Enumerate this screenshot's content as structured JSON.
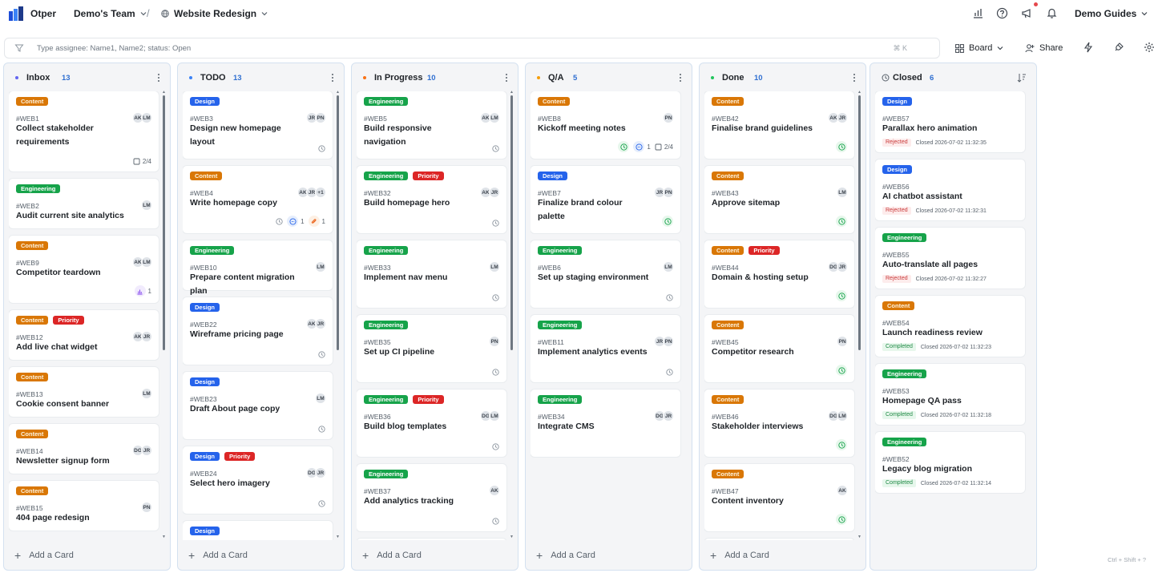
{
  "app": {
    "brand": "Otper",
    "team": "Demo's Team",
    "project": "Website Redesign",
    "guides": "Demo Guides"
  },
  "filter": {
    "placeholder": "Type assignee: Name1, Name2; status: Open",
    "shortcut": "⌘ K"
  },
  "toolbar": {
    "board_label": "Board",
    "share_label": "Share"
  },
  "footer_hint": "Ctrl + Shift + ?",
  "add_card_label": "Add a Card",
  "colors": {
    "inbox": "#6366f1",
    "todo": "#3b82f6",
    "inprogress": "#f97316",
    "qa": "#f59e0b",
    "done": "#22c55e"
  },
  "columns": [
    {
      "key": "inbox",
      "title": "Inbox",
      "count": "13",
      "cards": [
        {
          "id": "#WEB1",
          "title": "Collect stakeholder requirements",
          "tags": [
            "Content"
          ],
          "avatars": [
            "AK",
            "LM"
          ],
          "checklist": "2/4",
          "h": 100
        },
        {
          "id": "#WEB2",
          "title": "Audit current site analytics",
          "tags": [
            "Engineering"
          ],
          "avatars": [
            "LM"
          ],
          "h": 62
        },
        {
          "id": "#WEB9",
          "title": "Competitor teardown",
          "tags": [
            "Content"
          ],
          "avatars": [
            "AK",
            "LM"
          ],
          "chart": "1",
          "h": 84
        },
        {
          "id": "#WEB12",
          "title": "Add live chat widget",
          "tags": [
            "Content",
            "Priority"
          ],
          "avatars": [
            "AK",
            "JR"
          ],
          "h": 62
        },
        {
          "id": "#WEB13",
          "title": "Cookie consent banner",
          "tags": [
            "Content"
          ],
          "avatars": [
            "LM"
          ],
          "h": 62
        },
        {
          "id": "#WEB14",
          "title": "Newsletter signup form",
          "tags": [
            "Content"
          ],
          "avatars": [
            "DG",
            "JR"
          ],
          "h": 62
        },
        {
          "id": "#WEB15",
          "title": "404 page redesign",
          "tags": [
            "Content"
          ],
          "avatars": [
            "PN"
          ],
          "h": 62
        }
      ]
    },
    {
      "key": "todo",
      "title": "TODO",
      "count": "13",
      "cards": [
        {
          "id": "#WEB3",
          "title": "Design new homepage layout",
          "tags": [
            "Design"
          ],
          "avatars": [
            "JR",
            "PN"
          ],
          "clock": true,
          "h": 84
        },
        {
          "id": "#WEB4",
          "title": "Write homepage copy",
          "tags": [
            "Content"
          ],
          "avatars": [
            "AK",
            "JR",
            "+1"
          ],
          "clock": true,
          "comments": "1",
          "attach": "1",
          "h": 84
        },
        {
          "id": "#WEB10",
          "title": "Prepare content migration plan",
          "tags": [
            "Engineering"
          ],
          "avatars": [
            "LM"
          ],
          "h": 62
        },
        {
          "id": "#WEB22",
          "title": "Wireframe pricing page",
          "tags": [
            "Design"
          ],
          "avatars": [
            "AK",
            "JR"
          ],
          "clock": true,
          "h": 84
        },
        {
          "id": "#WEB23",
          "title": "Draft About page copy",
          "tags": [
            "Design"
          ],
          "avatars": [
            "LM"
          ],
          "clock": true,
          "h": 84
        },
        {
          "id": "#WEB24",
          "title": "Select hero imagery",
          "tags": [
            "Design",
            "Priority"
          ],
          "avatars": [
            "DG",
            "JR"
          ],
          "clock": true,
          "h": 84
        },
        {
          "id": "",
          "title": "",
          "tags": [
            "Design"
          ],
          "avatars": [],
          "h": 40
        }
      ]
    },
    {
      "key": "inprogress",
      "title": "In Progress",
      "count": "10",
      "cards": [
        {
          "id": "#WEB5",
          "title": "Build responsive navigation",
          "tags": [
            "Engineering"
          ],
          "avatars": [
            "AK",
            "LM"
          ],
          "clock": true,
          "h": 84
        },
        {
          "id": "#WEB32",
          "title": "Build homepage hero",
          "tags": [
            "Engineering",
            "Priority"
          ],
          "avatars": [
            "AK",
            "JR"
          ],
          "clock": true,
          "h": 84
        },
        {
          "id": "#WEB33",
          "title": "Implement nav menu",
          "tags": [
            "Engineering"
          ],
          "avatars": [
            "LM"
          ],
          "clock": true,
          "h": 84
        },
        {
          "id": "#WEB35",
          "title": "Set up CI pipeline",
          "tags": [
            "Engineering"
          ],
          "avatars": [
            "PN"
          ],
          "clock": true,
          "h": 84
        },
        {
          "id": "#WEB36",
          "title": "Build blog templates",
          "tags": [
            "Engineering",
            "Priority"
          ],
          "avatars": [
            "DG",
            "LM"
          ],
          "clock": true,
          "h": 84
        },
        {
          "id": "#WEB37",
          "title": "Add analytics tracking",
          "tags": [
            "Engineering"
          ],
          "avatars": [
            "AK"
          ],
          "clock": true,
          "h": 84
        },
        {
          "id": "",
          "title": "",
          "tags": [
            "Engineering"
          ],
          "avatars": [],
          "h": 40
        }
      ]
    },
    {
      "key": "qa",
      "title": "Q/A",
      "count": "5",
      "cards": [
        {
          "id": "#WEB8",
          "title": "Kickoff meeting notes",
          "tags": [
            "Content"
          ],
          "avatars": [
            "PN"
          ],
          "greenclock": true,
          "comments": "1",
          "checklist": "2/4",
          "h": 84
        },
        {
          "id": "#WEB7",
          "title": "Finalize brand colour palette",
          "tags": [
            "Design"
          ],
          "avatars": [
            "JR",
            "PN"
          ],
          "greenclock": true,
          "h": 84
        },
        {
          "id": "#WEB6",
          "title": "Set up staging environment",
          "tags": [
            "Engineering"
          ],
          "avatars": [
            "LM"
          ],
          "clock": true,
          "h": 84
        },
        {
          "id": "#WEB11",
          "title": "Implement analytics events",
          "tags": [
            "Engineering"
          ],
          "avatars": [
            "JR",
            "PN"
          ],
          "clock": true,
          "h": 84
        },
        {
          "id": "#WEB34",
          "title": "Integrate CMS",
          "tags": [
            "Engineering"
          ],
          "avatars": [
            "DG",
            "JR"
          ],
          "h": 84
        }
      ]
    },
    {
      "key": "done",
      "title": "Done",
      "count": "10",
      "cards": [
        {
          "id": "#WEB42",
          "title": "Finalise brand guidelines",
          "tags": [
            "Content"
          ],
          "avatars": [
            "AK",
            "JR"
          ],
          "greenclock": true,
          "h": 84
        },
        {
          "id": "#WEB43",
          "title": "Approve sitemap",
          "tags": [
            "Content"
          ],
          "avatars": [
            "LM"
          ],
          "greenclock": true,
          "h": 84
        },
        {
          "id": "#WEB44",
          "title": "Domain & hosting setup",
          "tags": [
            "Content",
            "Priority"
          ],
          "avatars": [
            "DG",
            "JR"
          ],
          "greenclock": true,
          "h": 84
        },
        {
          "id": "#WEB45",
          "title": "Competitor research",
          "tags": [
            "Content"
          ],
          "avatars": [
            "PN"
          ],
          "greenclock": true,
          "h": 84
        },
        {
          "id": "#WEB46",
          "title": "Stakeholder interviews",
          "tags": [
            "Content"
          ],
          "avatars": [
            "DG",
            "LM"
          ],
          "greenclock": true,
          "h": 84
        },
        {
          "id": "#WEB47",
          "title": "Content inventory",
          "tags": [
            "Content"
          ],
          "avatars": [
            "AK"
          ],
          "greenclock": true,
          "h": 84
        },
        {
          "id": "",
          "title": "",
          "tags": [
            "Content",
            "Priority"
          ],
          "avatars": [],
          "h": 40
        }
      ]
    },
    {
      "key": "closed",
      "title": "Closed",
      "count": "6",
      "cards": [
        {
          "id": "#WEB57",
          "title": "Parallax hero animation",
          "tags": [
            "Design"
          ],
          "status": "Rejected",
          "closed": "Closed 2026-07-02 11:32:35",
          "h": 76
        },
        {
          "id": "#WEB56",
          "title": "AI chatbot assistant",
          "tags": [
            "Design"
          ],
          "status": "Rejected",
          "closed": "Closed 2026-07-02 11:32:31",
          "h": 76
        },
        {
          "id": "#WEB55",
          "title": "Auto-translate all pages",
          "tags": [
            "Engineering"
          ],
          "status": "Rejected",
          "closed": "Closed 2026-07-02 11:32:27",
          "h": 76
        },
        {
          "id": "#WEB54",
          "title": "Launch readiness review",
          "tags": [
            "Content"
          ],
          "status": "Completed",
          "closed": "Closed 2026-07-02 11:32:23",
          "h": 76
        },
        {
          "id": "#WEB53",
          "title": "Homepage QA pass",
          "tags": [
            "Engineering"
          ],
          "status": "Completed",
          "closed": "Closed 2026-07-02 11:32:18",
          "h": 76
        },
        {
          "id": "#WEB52",
          "title": "Legacy blog migration",
          "tags": [
            "Engineering"
          ],
          "status": "Completed",
          "closed": "Closed 2026-07-02 11:32:14",
          "h": 76
        }
      ]
    }
  ]
}
